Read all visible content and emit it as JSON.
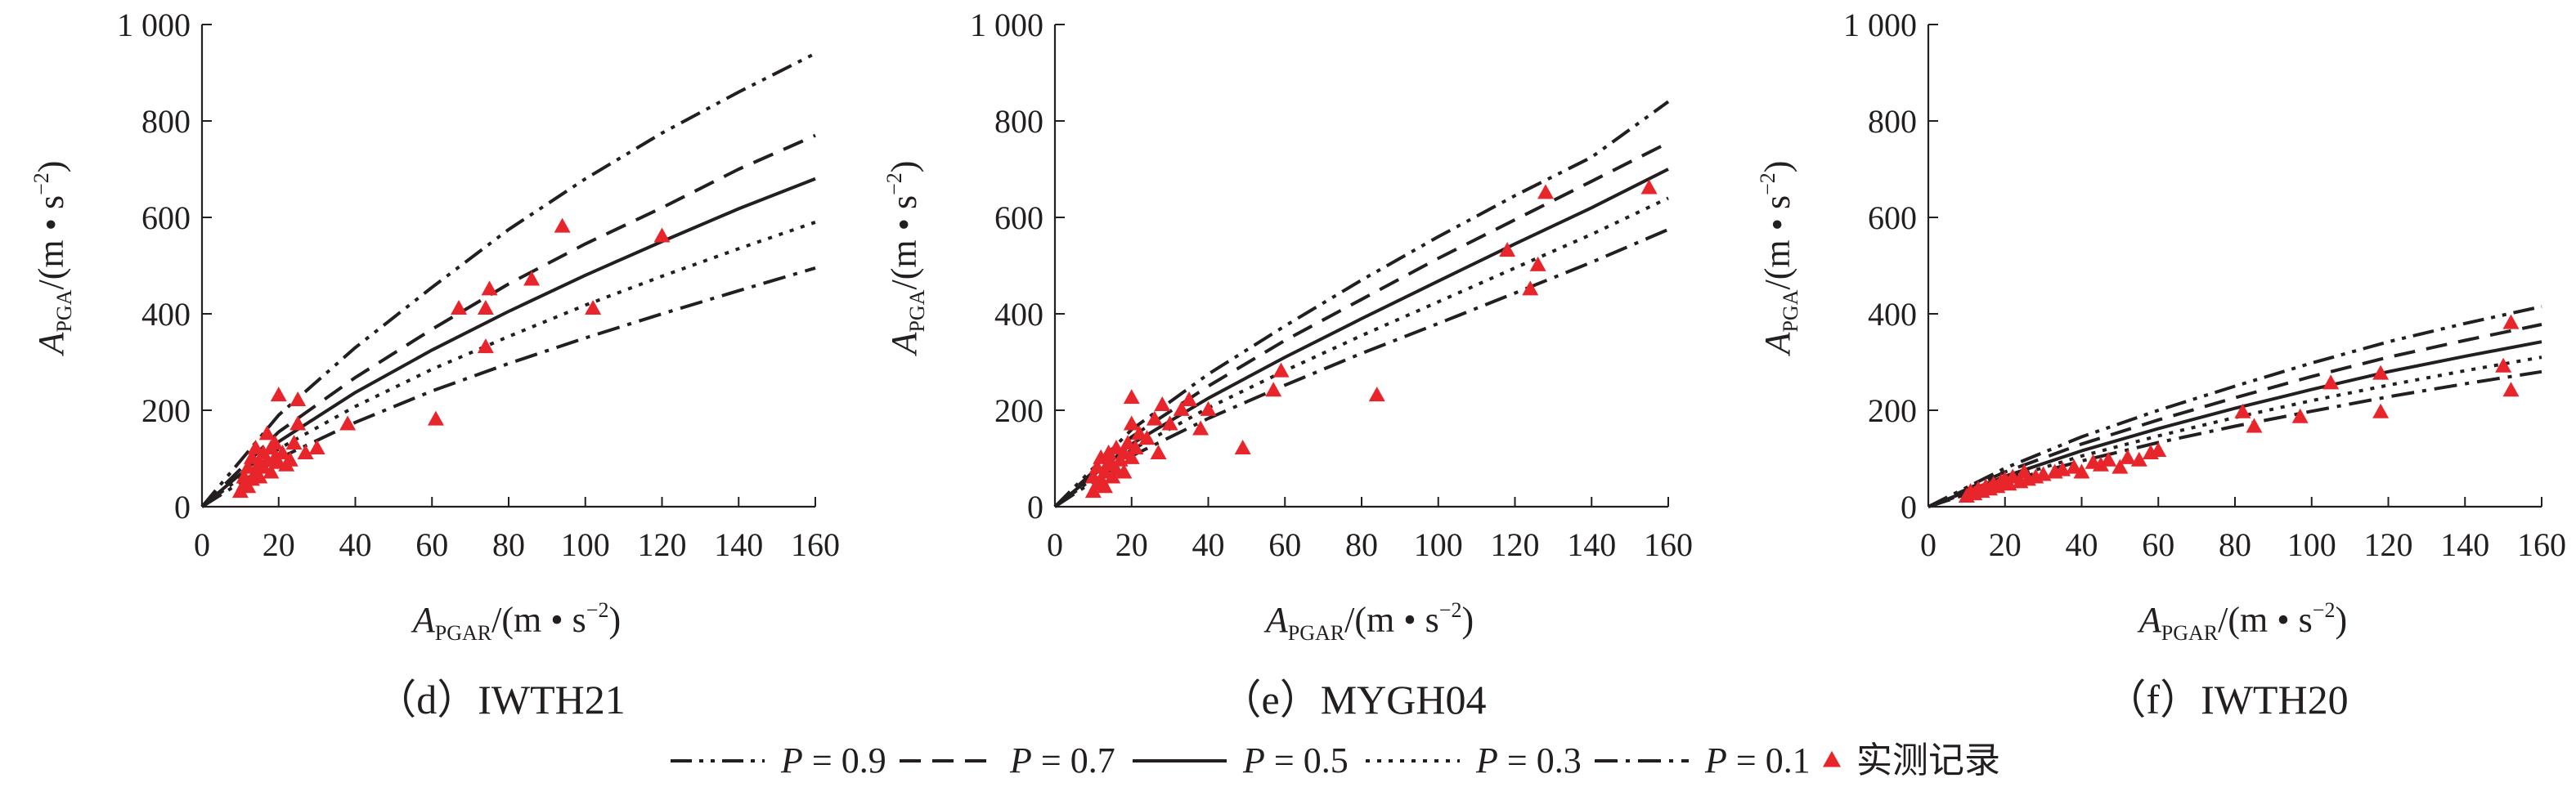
{
  "legend": {
    "items": [
      {
        "label": "P = 0.9",
        "p_symbol": "P",
        "p_value": "= 0.9",
        "style": "dash-dot-dot"
      },
      {
        "label": "P = 0.7",
        "p_symbol": "P",
        "p_value": "= 0.7",
        "style": "dashed"
      },
      {
        "label": "P = 0.5",
        "p_symbol": "P",
        "p_value": "= 0.5",
        "style": "solid"
      },
      {
        "label": "P = 0.3",
        "p_symbol": "P",
        "p_value": "= 0.3",
        "style": "dotted"
      },
      {
        "label": "P = 0.1",
        "p_symbol": "P",
        "p_value": "= 0.1",
        "style": "dash-dot"
      }
    ],
    "records_label": "实测记录",
    "records_color": "#e8252b"
  },
  "chart_data": [
    {
      "type": "scatter",
      "caption": "（d）IWTH21",
      "xlabel": {
        "main": "A",
        "sub": "PGAR",
        "unit": "/(m • s",
        "sup": "−2",
        "close": ")"
      },
      "ylabel": {
        "main": "A",
        "sub": "PGA",
        "unit": "/(m • s",
        "sup": "−2",
        "close": ")"
      },
      "xlim": [
        0,
        160
      ],
      "ylim": [
        0,
        1000
      ],
      "xticks": [
        0,
        20,
        40,
        60,
        80,
        100,
        120,
        140,
        160
      ],
      "yticks": [
        0,
        200,
        400,
        600,
        800,
        1000
      ],
      "ytick_labels": [
        "0",
        "200",
        "400",
        "600",
        "800",
        "1 000"
      ],
      "series": [
        {
          "name": "P = 0.9",
          "x": [
            0,
            20,
            40,
            60,
            80,
            100,
            120,
            140,
            160
          ],
          "y": [
            0,
            190,
            330,
            455,
            575,
            680,
            775,
            860,
            940
          ]
        },
        {
          "name": "P = 0.7",
          "x": [
            0,
            20,
            40,
            60,
            80,
            100,
            120,
            140,
            160
          ],
          "y": [
            0,
            155,
            268,
            368,
            462,
            545,
            620,
            700,
            770
          ]
        },
        {
          "name": "P = 0.5",
          "x": [
            0,
            20,
            40,
            60,
            80,
            100,
            120,
            140,
            160
          ],
          "y": [
            0,
            135,
            237,
            325,
            405,
            480,
            550,
            618,
            680
          ]
        },
        {
          "name": "P = 0.3",
          "x": [
            0,
            20,
            40,
            60,
            80,
            100,
            120,
            140,
            160
          ],
          "y": [
            0,
            120,
            208,
            285,
            353,
            418,
            478,
            535,
            590
          ]
        },
        {
          "name": "P = 0.1",
          "x": [
            0,
            20,
            40,
            60,
            80,
            100,
            120,
            140,
            160
          ],
          "y": [
            0,
            100,
            175,
            240,
            297,
            350,
            400,
            448,
            495
          ]
        }
      ],
      "points": [
        [
          10,
          30
        ],
        [
          11,
          45
        ],
        [
          11,
          60
        ],
        [
          12,
          40
        ],
        [
          12,
          80
        ],
        [
          13,
          55
        ],
        [
          13,
          100
        ],
        [
          14,
          70
        ],
        [
          14,
          120
        ],
        [
          15,
          60
        ],
        [
          15,
          90
        ],
        [
          16,
          80
        ],
        [
          16,
          110
        ],
        [
          17,
          95
        ],
        [
          17,
          150
        ],
        [
          18,
          70
        ],
        [
          18,
          120
        ],
        [
          19,
          100
        ],
        [
          19,
          130
        ],
        [
          20,
          90
        ],
        [
          20,
          230
        ],
        [
          21,
          110
        ],
        [
          22,
          85
        ],
        [
          23,
          95
        ],
        [
          24,
          130
        ],
        [
          25,
          170
        ],
        [
          25,
          220
        ],
        [
          27,
          110
        ],
        [
          30,
          120
        ],
        [
          38,
          170
        ],
        [
          61,
          180
        ],
        [
          67,
          410
        ],
        [
          74,
          410
        ],
        [
          75,
          450
        ],
        [
          74,
          330
        ],
        [
          86,
          470
        ],
        [
          94,
          580
        ],
        [
          102,
          410
        ],
        [
          120,
          560
        ]
      ]
    },
    {
      "type": "scatter",
      "caption": "（e）MYGH04",
      "xlabel": {
        "main": "A",
        "sub": "PGAR",
        "unit": "/(m • s",
        "sup": "−2",
        "close": ")"
      },
      "ylabel": {
        "main": "A",
        "sub": "PGA",
        "unit": "/(m • s",
        "sup": "−2",
        "close": ")"
      },
      "xlim": [
        0,
        160
      ],
      "ylim": [
        0,
        1000
      ],
      "xticks": [
        0,
        20,
        40,
        60,
        80,
        100,
        120,
        140,
        160
      ],
      "yticks": [
        0,
        200,
        400,
        600,
        800,
        1000
      ],
      "ytick_labels": [
        "0",
        "200",
        "400",
        "600",
        "800",
        "1 000"
      ],
      "series": [
        {
          "name": "P = 0.9",
          "x": [
            0,
            20,
            40,
            60,
            80,
            100,
            120,
            140,
            160
          ],
          "y": [
            0,
            160,
            275,
            375,
            470,
            560,
            645,
            725,
            840
          ]
        },
        {
          "name": "P = 0.7",
          "x": [
            0,
            20,
            40,
            60,
            80,
            100,
            120,
            140,
            160
          ],
          "y": [
            0,
            145,
            250,
            345,
            430,
            515,
            595,
            675,
            755
          ]
        },
        {
          "name": "P = 0.5",
          "x": [
            0,
            20,
            40,
            60,
            80,
            100,
            120,
            140,
            160
          ],
          "y": [
            0,
            130,
            225,
            310,
            390,
            468,
            545,
            620,
            700
          ]
        },
        {
          "name": "P = 0.3",
          "x": [
            0,
            20,
            40,
            60,
            80,
            100,
            120,
            140,
            160
          ],
          "y": [
            0,
            118,
            205,
            282,
            355,
            425,
            495,
            565,
            640
          ]
        },
        {
          "name": "P = 0.1",
          "x": [
            0,
            20,
            40,
            60,
            80,
            100,
            120,
            140,
            160
          ],
          "y": [
            0,
            105,
            183,
            252,
            318,
            380,
            443,
            507,
            575
          ]
        }
      ],
      "points": [
        [
          10,
          30
        ],
        [
          10,
          60
        ],
        [
          11,
          45
        ],
        [
          11,
          80
        ],
        [
          12,
          55
        ],
        [
          12,
          100
        ],
        [
          13,
          70
        ],
        [
          13,
          40
        ],
        [
          14,
          90
        ],
        [
          14,
          110
        ],
        [
          15,
          60
        ],
        [
          15,
          85
        ],
        [
          16,
          75
        ],
        [
          16,
          120
        ],
        [
          17,
          95
        ],
        [
          18,
          70
        ],
        [
          18,
          110
        ],
        [
          19,
          130
        ],
        [
          20,
          100
        ],
        [
          20,
          170
        ],
        [
          20,
          225
        ],
        [
          21,
          120
        ],
        [
          22,
          150
        ],
        [
          24,
          140
        ],
        [
          26,
          180
        ],
        [
          27,
          110
        ],
        [
          28,
          210
        ],
        [
          30,
          170
        ],
        [
          33,
          200
        ],
        [
          35,
          220
        ],
        [
          38,
          160
        ],
        [
          40,
          200
        ],
        [
          49,
          120
        ],
        [
          57,
          240
        ],
        [
          59,
          280
        ],
        [
          84,
          230
        ],
        [
          118,
          530
        ],
        [
          124,
          450
        ],
        [
          126,
          500
        ],
        [
          128,
          650
        ],
        [
          155,
          660
        ]
      ]
    },
    {
      "type": "scatter",
      "caption": "（f）IWTH20",
      "xlabel": {
        "main": "A",
        "sub": "PGAR",
        "unit": "/(m • s",
        "sup": "−2",
        "close": ")"
      },
      "ylabel": {
        "main": "A",
        "sub": "PGA",
        "unit": "/(m • s",
        "sup": "−2",
        "close": ")"
      },
      "xlim": [
        0,
        160
      ],
      "ylim": [
        0,
        1000
      ],
      "xticks": [
        0,
        20,
        40,
        60,
        80,
        100,
        120,
        140,
        160
      ],
      "yticks": [
        0,
        200,
        400,
        600,
        800,
        1000
      ],
      "ytick_labels": [
        "0",
        "200",
        "400",
        "600",
        "800",
        "1 000"
      ],
      "series": [
        {
          "name": "P = 0.9",
          "x": [
            0,
            20,
            40,
            60,
            80,
            100,
            120,
            140,
            160
          ],
          "y": [
            0,
            80,
            145,
            200,
            250,
            298,
            342,
            380,
            415
          ]
        },
        {
          "name": "P = 0.7",
          "x": [
            0,
            20,
            40,
            60,
            80,
            100,
            120,
            140,
            160
          ],
          "y": [
            0,
            72,
            130,
            180,
            226,
            270,
            310,
            345,
            378
          ]
        },
        {
          "name": "P = 0.5",
          "x": [
            0,
            20,
            40,
            60,
            80,
            100,
            120,
            140,
            160
          ],
          "y": [
            0,
            63,
            116,
            162,
            204,
            243,
            280,
            312,
            342
          ]
        },
        {
          "name": "P = 0.3",
          "x": [
            0,
            20,
            40,
            60,
            80,
            100,
            120,
            140,
            160
          ],
          "y": [
            0,
            57,
            105,
            147,
            185,
            220,
            252,
            282,
            310
          ]
        },
        {
          "name": "P = 0.1",
          "x": [
            0,
            20,
            40,
            60,
            80,
            100,
            120,
            140,
            160
          ],
          "y": [
            0,
            52,
            95,
            133,
            167,
            198,
            228,
            255,
            280
          ]
        }
      ],
      "points": [
        [
          10,
          20
        ],
        [
          11,
          30
        ],
        [
          12,
          25
        ],
        [
          13,
          35
        ],
        [
          14,
          30
        ],
        [
          15,
          40
        ],
        [
          16,
          35
        ],
        [
          17,
          45
        ],
        [
          18,
          40
        ],
        [
          19,
          50
        ],
        [
          20,
          55
        ],
        [
          21,
          45
        ],
        [
          22,
          60
        ],
        [
          24,
          50
        ],
        [
          25,
          70
        ],
        [
          26,
          55
        ],
        [
          28,
          60
        ],
        [
          30,
          65
        ],
        [
          33,
          70
        ],
        [
          35,
          75
        ],
        [
          38,
          80
        ],
        [
          40,
          70
        ],
        [
          43,
          90
        ],
        [
          45,
          85
        ],
        [
          47,
          95
        ],
        [
          50,
          80
        ],
        [
          52,
          100
        ],
        [
          55,
          95
        ],
        [
          58,
          110
        ],
        [
          60,
          115
        ],
        [
          82,
          195
        ],
        [
          85,
          165
        ],
        [
          97,
          185
        ],
        [
          105,
          255
        ],
        [
          118,
          195
        ],
        [
          118,
          275
        ],
        [
          150,
          290
        ],
        [
          152,
          240
        ],
        [
          152,
          380
        ]
      ]
    }
  ]
}
